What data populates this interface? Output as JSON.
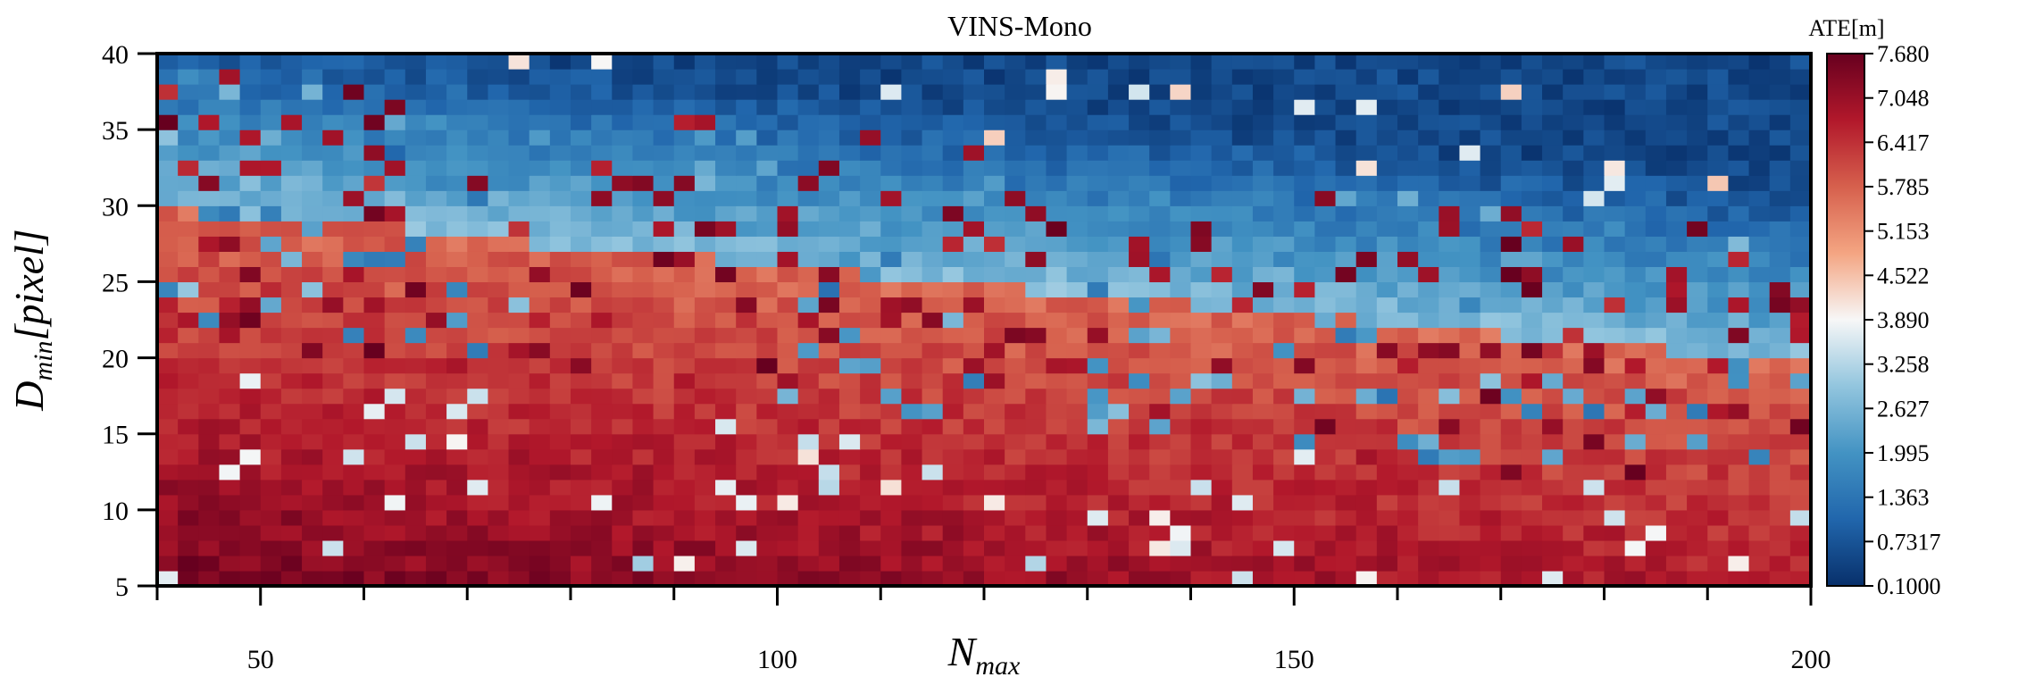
{
  "chart_data": {
    "type": "heatmap",
    "title": "VINS-Mono",
    "xlabel": "N",
    "xlabel_sub": "max",
    "ylabel_main": "D",
    "ylabel_sub": "min",
    "ylabel_unit": "[pixel]",
    "xlim": [
      40,
      200
    ],
    "ylim": [
      5,
      40
    ],
    "x_ticks": [
      50,
      100,
      150,
      200
    ],
    "y_ticks": [
      5,
      10,
      15,
      20,
      25,
      30,
      35,
      40
    ],
    "colorbar": {
      "label": "ATE[m]",
      "min": 0.1,
      "max": 7.68,
      "tick_labels": [
        "0.1000",
        "0.7317",
        "1.363",
        "1.995",
        "2.627",
        "3.258",
        "3.890",
        "4.522",
        "5.153",
        "5.785",
        "6.417",
        "7.048",
        "7.680"
      ],
      "colormap": [
        "#08306b",
        "#2166ac",
        "#4393c3",
        "#92c5de",
        "#f7f7f7",
        "#f4a582",
        "#d6604d",
        "#b2182b",
        "#67001f"
      ]
    },
    "grid": false
  }
}
